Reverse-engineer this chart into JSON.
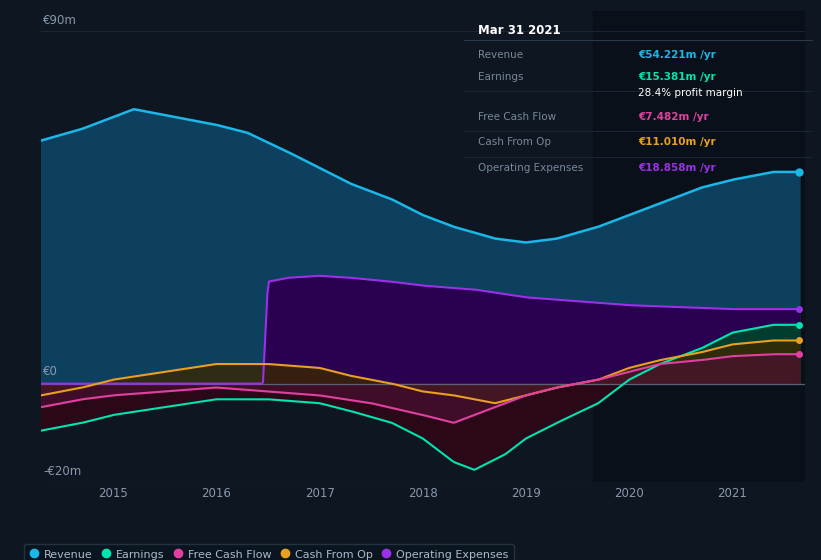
{
  "background_color": "#0e1621",
  "plot_bg_color": "#0e1621",
  "ylabel_top": "€90m",
  "ylabel_zero": "€0",
  "ylabel_neg": "-€20m",
  "xticks": [
    "2015",
    "2016",
    "2017",
    "2018",
    "2019",
    "2020",
    "2021"
  ],
  "xtick_pos": [
    2015,
    2016,
    2017,
    2018,
    2019,
    2020,
    2021
  ],
  "ylim": [
    -25,
    95
  ],
  "xlim": [
    2014.3,
    2021.7
  ],
  "revenue_color": "#1ab8e8",
  "revenue_fill": "#0d3f5e",
  "earnings_color": "#00e5b0",
  "earnings_fill": "#003d2e",
  "fcf_color": "#e040a0",
  "fcf_fill": "#4a1030",
  "cashop_color": "#e8a020",
  "cashop_fill": "#3a2800",
  "opex_color": "#9b30e8",
  "opex_fill": "#2a0050",
  "zero_line_color": "#606880",
  "grid_line_color": "#2a3040",
  "infobox": {
    "title": "Mar 31 2021",
    "rows": [
      {
        "label": "Revenue",
        "value": "€54.221m /yr",
        "value_color": "#1ab8e8"
      },
      {
        "label": "Earnings",
        "value": "€15.381m /yr",
        "value_color": "#00e5b0"
      },
      {
        "label": "",
        "value": "28.4% profit margin",
        "value_color": "#ffffff"
      },
      {
        "label": "Free Cash Flow",
        "value": "€7.482m /yr",
        "value_color": "#e040a0"
      },
      {
        "label": "Cash From Op",
        "value": "€11.010m /yr",
        "value_color": "#e8a020"
      },
      {
        "label": "Operating Expenses",
        "value": "€18.858m /yr",
        "value_color": "#9b30e8"
      }
    ]
  },
  "legend": [
    {
      "label": "Revenue",
      "color": "#1ab8e8"
    },
    {
      "label": "Earnings",
      "color": "#00e5b0"
    },
    {
      "label": "Free Cash Flow",
      "color": "#e040a0"
    },
    {
      "label": "Cash From Op",
      "color": "#e8a020"
    },
    {
      "label": "Operating Expenses",
      "color": "#9b30e8"
    }
  ]
}
